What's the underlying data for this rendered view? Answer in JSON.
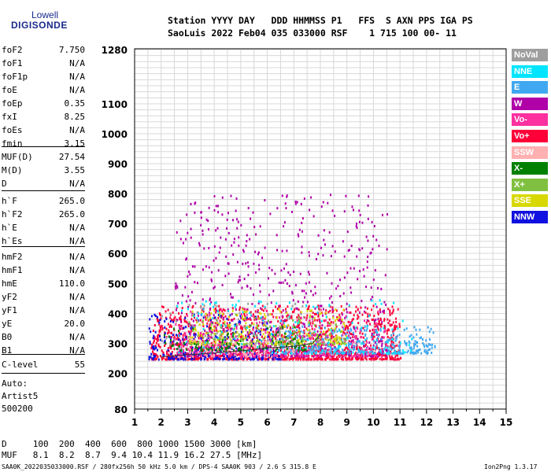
{
  "logo": {
    "line1": "Lowell",
    "line2": "DIGISONDE"
  },
  "header": {
    "labels_row": "Station YYYY DAY   DDD HHMMSS P1   FFS  S AXN PPS IGA PS",
    "values_row": "SaoLuis 2022 Feb04 035 033000 RSF    1 715 100 00- 11"
  },
  "params_group1": [
    {
      "k": "foF2",
      "v": "7.750"
    },
    {
      "k": "foF1",
      "v": "N/A"
    },
    {
      "k": "foF1p",
      "v": "N/A"
    },
    {
      "k": "foE",
      "v": "N/A"
    },
    {
      "k": "foEp",
      "v": "0.35"
    },
    {
      "k": "fxI",
      "v": "8.25"
    },
    {
      "k": "foEs",
      "v": "N/A"
    },
    {
      "k": "fmin",
      "v": "3.15"
    }
  ],
  "params_group2": [
    {
      "k": "MUF(D)",
      "v": "27.54"
    },
    {
      "k": "M(D)",
      "v": "3.55"
    },
    {
      "k": "D",
      "v": "N/A"
    }
  ],
  "params_group3": [
    {
      "k": "h`F",
      "v": "265.0"
    },
    {
      "k": "h`F2",
      "v": "265.0"
    },
    {
      "k": "h`E",
      "v": "N/A"
    },
    {
      "k": "h`Es",
      "v": "N/A"
    }
  ],
  "params_group4": [
    {
      "k": "hmF2",
      "v": "N/A"
    },
    {
      "k": "hmF1",
      "v": "N/A"
    },
    {
      "k": "hmE",
      "v": "110.0"
    },
    {
      "k": "yF2",
      "v": "N/A"
    },
    {
      "k": "yF1",
      "v": "N/A"
    },
    {
      "k": "yE",
      "v": "20.0"
    },
    {
      "k": "B0",
      "v": "N/A"
    },
    {
      "k": "B1",
      "v": "N/A"
    }
  ],
  "params_group5": [
    {
      "k": "C-level",
      "v": "55"
    }
  ],
  "auto": {
    "line1": "Auto:",
    "line2": "Artist5",
    "line3": "500200"
  },
  "legend": [
    {
      "label": "NoVal",
      "color": "#9e9e9e"
    },
    {
      "label": "NNE",
      "color": "#00e5ff"
    },
    {
      "label": "E",
      "color": "#40a8f0"
    },
    {
      "label": "W",
      "color": "#b000a8"
    },
    {
      "label": "Vo-",
      "color": "#ff30a0"
    },
    {
      "label": "Vo+",
      "color": "#ff0038"
    },
    {
      "label": "SSW",
      "color": "#ffb0b0"
    },
    {
      "label": "X-",
      "color": "#008000"
    },
    {
      "label": "X+",
      "color": "#80c040"
    },
    {
      "label": "SSE",
      "color": "#d8d800"
    },
    {
      "label": "NNW",
      "color": "#1010e0"
    }
  ],
  "footer": {
    "d_row": "D     100  200  400  600  800 1000 1500 3000 [km]",
    "muf_row": "MUF   8.1  8.2  8.7  9.4 10.4 11.9 16.2 27.5 [MHz]",
    "file_info": "SAA0K_2022035033000.RSF / 280fx256h 50 kHz 5.0 km / DPS-4 SAA0K 903 / 2.6 S 315.8 E",
    "version": "Ion2Png 1.3.17"
  },
  "chart_data": {
    "type": "scatter",
    "title": "",
    "xlabel": "",
    "ylabel": "",
    "xlim": [
      1,
      15
    ],
    "ylim": [
      80,
      1280
    ],
    "x_ticks": [
      "1",
      "2",
      "3",
      "4",
      "5",
      "6",
      "7",
      "8",
      "9",
      "10",
      "11",
      "12",
      "13",
      "14",
      "15"
    ],
    "y_ticks": [
      {
        "v": 80,
        "label": "80"
      },
      {
        "v": 200,
        "label": "200"
      },
      {
        "v": 300,
        "label": "300"
      },
      {
        "v": 400,
        "label": "400"
      },
      {
        "v": 500,
        "label": "500"
      },
      {
        "v": 600,
        "label": "600"
      },
      {
        "v": 700,
        "label": "700"
      },
      {
        "v": 800,
        "label": "800"
      },
      {
        "v": 900,
        "label": "900"
      },
      {
        "v": 1000,
        "label": "1000"
      },
      {
        "v": 1100,
        "label": "1100"
      },
      {
        "v": 1280,
        "label": "1280"
      }
    ],
    "grid": true,
    "y_scale": "nonlinear-ionogram",
    "y_tick_values": [
      80,
      200,
      300,
      400,
      500,
      600,
      700,
      800,
      900,
      1000,
      1100,
      1280
    ],
    "points_description": "Echo points with frequencies 2-12.3 MHz at heights 250-950 km, colored by polarization/direction",
    "trace": {
      "x": [
        2.0,
        3.0,
        4.0,
        5.0,
        6.0,
        7.0,
        7.7,
        8.0
      ],
      "y": [
        255,
        262,
        268,
        275,
        285,
        290,
        300,
        330
      ]
    },
    "clusters": [
      {
        "series": "Vo+",
        "x": [
          1.6,
          11.0
        ],
        "y": [
          250,
          430
        ],
        "n": 1400
      },
      {
        "series": "W",
        "x": [
          2.5,
          10.5
        ],
        "y": [
          260,
          800
        ],
        "n": 700
      },
      {
        "series": "E",
        "x": [
          6.5,
          12.3
        ],
        "y": [
          270,
          360
        ],
        "n": 350
      },
      {
        "series": "NNW",
        "x": [
          1.5,
          6.5
        ],
        "y": [
          250,
          400
        ],
        "n": 300
      },
      {
        "series": "SSE",
        "x": [
          3.0,
          9.0
        ],
        "y": [
          300,
          420
        ],
        "n": 250
      },
      {
        "series": "NNE",
        "x": [
          2.5,
          11.5
        ],
        "y": [
          270,
          450
        ],
        "n": 200
      },
      {
        "series": "Vo-",
        "x": [
          2.5,
          10.5
        ],
        "y": [
          260,
          420
        ],
        "n": 250
      },
      {
        "series": "X-",
        "x": [
          2.0,
          7.5
        ],
        "y": [
          280,
          360
        ],
        "n": 120
      },
      {
        "series": "X+",
        "x": [
          3.0,
          9.0
        ],
        "y": [
          300,
          400
        ],
        "n": 120
      },
      {
        "series": "SSW",
        "x": [
          3.0,
          7.0
        ],
        "y": [
          260,
          330
        ],
        "n": 80
      },
      {
        "series": "NoVal",
        "x": [
          2.0,
          8.0
        ],
        "y": [
          300,
          440
        ],
        "n": 60
      }
    ]
  }
}
